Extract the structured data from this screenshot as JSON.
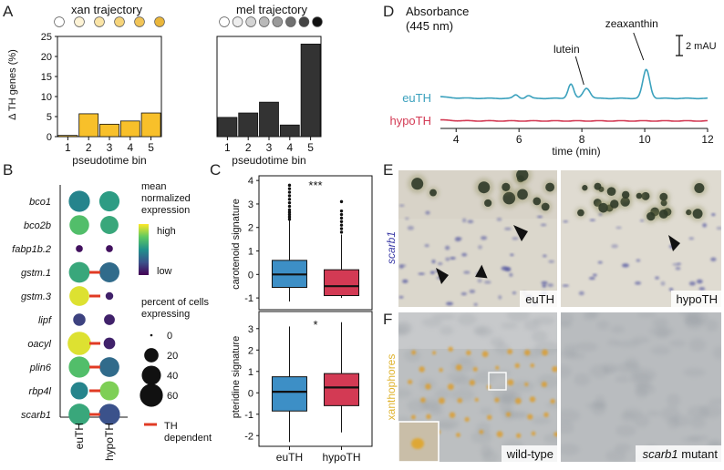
{
  "panels": {
    "a": {
      "letter": "A"
    },
    "b": {
      "letter": "B"
    },
    "c": {
      "letter": "C"
    },
    "d": {
      "letter": "D"
    },
    "e": {
      "letter": "E"
    },
    "f": {
      "letter": "F"
    }
  },
  "chart_data": [
    {
      "id": "A-xan",
      "type": "bar",
      "title": "xan trajectory",
      "xlabel": "pseudotime bin",
      "ylabel": "Δ TH genes (%)",
      "categories": [
        "1",
        "2",
        "3",
        "4",
        "5"
      ],
      "values": [
        0.3,
        5.7,
        3.1,
        3.9,
        5.9
      ],
      "ylim": [
        0,
        25
      ],
      "yticks": [
        "0",
        "5",
        "10",
        "15",
        "20",
        "25"
      ],
      "bar_color": "#f8c02a",
      "stage_colors": [
        "#ffffff",
        "#fdf3d6",
        "#fae4a6",
        "#f6d47a",
        "#f1c457",
        "#eab63a"
      ]
    },
    {
      "id": "A-mel",
      "type": "bar",
      "title": "mel trajectory",
      "xlabel": "pseudotime bin",
      "categories": [
        "1",
        "2",
        "3",
        "4",
        "5"
      ],
      "values": [
        4.8,
        5.9,
        8.6,
        2.9,
        23.1
      ],
      "ylim": [
        0,
        25
      ],
      "bar_color": "#333333",
      "stage_colors": [
        "#ffffff",
        "#eeeeee",
        "#d4d4d4",
        "#b9b9b9",
        "#9a9a9a",
        "#707070",
        "#444444",
        "#111111"
      ]
    },
    {
      "id": "B",
      "type": "scatter",
      "genes": [
        "bco1",
        "bco2b",
        "fabp1b.2",
        "gstm.1",
        "gstm.3",
        "lipf",
        "oacyl",
        "plin6",
        "rbp4l",
        "scarb1"
      ],
      "groups": [
        "euTH",
        "hypoTH"
      ],
      "expression": [
        [
          0.45,
          0.55
        ],
        [
          0.7,
          0.6
        ],
        [
          0.05,
          0.05
        ],
        [
          0.6,
          0.35
        ],
        [
          0.95,
          0.1
        ],
        [
          0.2,
          0.1
        ],
        [
          0.95,
          0.1
        ],
        [
          0.7,
          0.35
        ],
        [
          0.45,
          0.8
        ],
        [
          0.6,
          0.25
        ]
      ],
      "percent": [
        [
          50,
          45
        ],
        [
          42,
          35
        ],
        [
          3,
          3
        ],
        [
          48,
          44
        ],
        [
          43,
          4
        ],
        [
          14,
          10
        ],
        [
          62,
          12
        ],
        [
          50,
          43
        ],
        [
          32,
          40
        ],
        [
          52,
          50
        ]
      ],
      "th_dependent": [
        false,
        false,
        false,
        true,
        true,
        false,
        true,
        true,
        true,
        true
      ],
      "colorbar_title": [
        "mean",
        "normalized",
        "expression"
      ],
      "colorbar_high": "high",
      "colorbar_low": "low",
      "size_title": [
        "percent of cells",
        "expressing"
      ],
      "size_values": [
        "0",
        "20",
        "40",
        "60"
      ],
      "dep_label": [
        "TH",
        "dependent"
      ],
      "dep_color": "#e03b24"
    },
    {
      "id": "C-top",
      "type": "box",
      "ylabel": "carotenoid signature",
      "categories": [
        "euTH",
        "hypoTH"
      ],
      "colors": [
        "#3d8fc6",
        "#d33a54"
      ],
      "ylim": [
        -1.5,
        4.2
      ],
      "yticks": [
        -1,
        0,
        1,
        2,
        3,
        4
      ],
      "stats": [
        {
          "whislo": -1.15,
          "q1": -0.55,
          "med": 0.0,
          "q3": 0.6,
          "whishi": 2.3,
          "outliers": [
            2.35,
            2.45,
            2.55,
            2.65,
            2.75,
            2.9,
            3.05,
            3.2,
            3.35,
            3.5,
            3.65,
            3.8
          ]
        },
        {
          "whislo": -1.0,
          "q1": -0.9,
          "med": -0.5,
          "q3": 0.2,
          "whishi": 1.7,
          "outliers": [
            1.8,
            1.95,
            2.1,
            2.25,
            2.4,
            2.55,
            2.7,
            3.1
          ]
        }
      ],
      "annotation": "***"
    },
    {
      "id": "C-bottom",
      "type": "box",
      "ylabel": "pteridine signature",
      "categories": [
        "euTH",
        "hypoTH"
      ],
      "colors": [
        "#3d8fc6",
        "#d33a54"
      ],
      "ylim": [
        -2.5,
        3.8
      ],
      "yticks": [
        -2,
        -1,
        0,
        1,
        2,
        3
      ],
      "stats": [
        {
          "whislo": -2.3,
          "q1": -0.85,
          "med": 0.05,
          "q3": 0.75,
          "whishi": 3.1,
          "outliers": []
        },
        {
          "whislo": -1.85,
          "q1": -0.6,
          "med": 0.25,
          "q3": 0.9,
          "whishi": 3.3,
          "outliers": []
        }
      ],
      "annotation": "*"
    },
    {
      "id": "D",
      "type": "line",
      "title": [
        "Absorbance",
        "(445 nm)"
      ],
      "xlabel": "time (min)",
      "xlim": [
        3.5,
        12
      ],
      "xticks": [
        4,
        6,
        8,
        10,
        12
      ],
      "scale_bar": "2 mAU",
      "series": [
        {
          "name": "euTH",
          "color": "#3ba1bd",
          "baseline": 0,
          "peaks": [
            [
              5.9,
              0.5,
              0.08
            ],
            [
              6.3,
              0.4,
              0.08
            ],
            [
              7.65,
              2.1,
              0.09
            ],
            [
              8.15,
              1.5,
              0.11
            ],
            [
              10.05,
              4.2,
              0.11
            ]
          ],
          "drift": 0.25
        },
        {
          "name": "hypoTH",
          "color": "#d33a54",
          "baseline": -3.3,
          "peaks": [],
          "drift": 0.15
        }
      ],
      "annotations": [
        {
          "label": "lutein",
          "x": 8.15
        },
        {
          "label": "zeaxanthin",
          "x": 10.05
        }
      ]
    }
  ],
  "photos": {
    "e": {
      "stain": "scarb1",
      "left": "euTH",
      "right": "hypoTH"
    },
    "f": {
      "stain": "xanthophores",
      "left": "wild-type",
      "right_gene": "scarb1",
      "right_suffix": " mutant"
    }
  }
}
